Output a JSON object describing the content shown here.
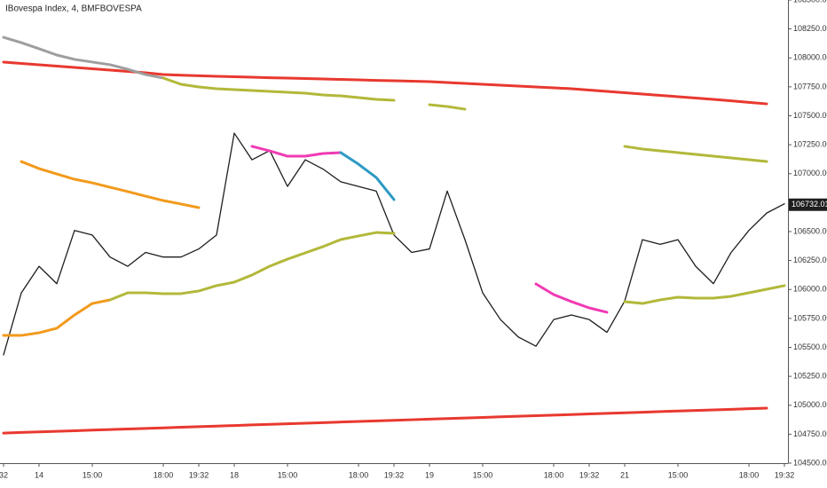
{
  "chart_data": {
    "type": "line",
    "title": "IBovespa Index, 4, BMFBOVESPA",
    "categories": [
      "32",
      null,
      "14",
      null,
      null,
      "15:00",
      null,
      null,
      null,
      "18:00",
      null,
      "19:32",
      null,
      "18",
      null,
      null,
      "15:00",
      null,
      null,
      null,
      "18:00",
      null,
      "19:32",
      null,
      "19",
      null,
      null,
      "15:00",
      null,
      null,
      null,
      "18:00",
      null,
      "19:32",
      null,
      "21",
      null,
      null,
      "15:00",
      null,
      null,
      null,
      "18:00",
      null,
      "19:32"
    ],
    "ylim": [
      104500,
      108500
    ],
    "yticks": [
      {
        "value": 104500,
        "label": "104500.00"
      },
      {
        "value": 104750,
        "label": "104750.00"
      },
      {
        "value": 105000,
        "label": "105000.00"
      },
      {
        "value": 105250,
        "label": "105250.00"
      },
      {
        "value": 105500,
        "label": "105500.00"
      },
      {
        "value": 105750,
        "label": "105750.00"
      },
      {
        "value": 106000,
        "label": "106000.00"
      },
      {
        "value": 106250,
        "label": "106250.00"
      },
      {
        "value": 106500,
        "label": "106500.00"
      },
      {
        "value": 106750,
        "label": "106750.00"
      },
      {
        "value": 107000,
        "label": "107000.00"
      },
      {
        "value": 107250,
        "label": "107250.00"
      },
      {
        "value": 107500,
        "label": "107500.00"
      },
      {
        "value": 107750,
        "label": "107750.00"
      },
      {
        "value": 108000,
        "label": "108000.00"
      },
      {
        "value": 108250,
        "label": "108250.00"
      },
      {
        "value": 108500,
        "label": "108500.00"
      }
    ],
    "last_price": 106732.01,
    "grid": false,
    "series": [
      {
        "color": "#1e1e1e",
        "values": [
          105435,
          105970,
          106200,
          106050,
          106510,
          106470,
          106280,
          106200,
          106320,
          106280,
          106280,
          106350,
          106470,
          107350,
          107120,
          107200,
          106890,
          107120,
          107040,
          106930,
          106890,
          106850,
          106470,
          106320,
          106350,
          106850,
          106430,
          105970,
          105740,
          105590,
          105510,
          105740,
          105780,
          105740,
          105630,
          105900,
          106430,
          106390,
          106430,
          106200,
          106050,
          106320,
          106510,
          106660,
          106740
        ]
      },
      {
        "color": "#e8392f",
        "values": [
          107964,
          107952,
          107941,
          107929,
          107918,
          107906,
          107895,
          107883,
          107872,
          107856,
          107851,
          107846,
          107841,
          107837,
          107833,
          107829,
          107826,
          107822,
          107818,
          107814,
          107810,
          107806,
          107803,
          107799,
          107795,
          107787,
          107780,
          107772,
          107764,
          107757,
          107749,
          107741,
          107734,
          107722,
          107711,
          107699,
          107688,
          107676,
          107665,
          107653,
          107642,
          107629,
          107616,
          107603,
          null
        ]
      },
      {
        "color": "#e8392f",
        "values": [
          104760,
          104765,
          104770,
          104775,
          104780,
          104785,
          104790,
          104795,
          104800,
          104805,
          104810,
          104815,
          104820,
          104825,
          104830,
          104835,
          104840,
          104845,
          104850,
          104855,
          104860,
          104865,
          104870,
          104875,
          104880,
          104885,
          104890,
          104895,
          104900,
          104905,
          104910,
          104915,
          104920,
          104925,
          104930,
          104935,
          104940,
          104945,
          104950,
          104955,
          104960,
          104965,
          104970,
          104975,
          null
        ]
      },
      {
        "color": "#9e9e9e",
        "values": [
          108178,
          108132,
          108079,
          108025,
          107987,
          107964,
          107941,
          107902,
          107856,
          107826,
          null,
          null,
          null,
          null,
          null,
          null,
          null,
          null,
          null,
          null,
          null,
          null,
          null,
          null,
          null,
          null,
          null,
          null,
          null,
          null,
          null,
          null,
          null,
          null,
          null,
          null,
          null,
          null,
          null,
          null,
          null,
          null,
          null,
          null,
          null
        ]
      },
      {
        "color": "#b3b83a",
        "values": [
          null,
          null,
          null,
          null,
          null,
          null,
          null,
          null,
          null,
          107826,
          107772,
          107749,
          107734,
          107726,
          107718,
          107711,
          107703,
          107695,
          107680,
          107672,
          107657,
          107642,
          107634,
          null,
          107596,
          107580,
          107557,
          null,
          null,
          null,
          null,
          null,
          null,
          null,
          null,
          107236,
          107213,
          107197,
          107182,
          107167,
          107151,
          107136,
          107121,
          107105,
          null
        ]
      },
      {
        "color": "#f29a1c",
        "values": [
          null,
          107105,
          107044,
          106998,
          106952,
          106921,
          106883,
          106845,
          106806,
          106768,
          106738,
          106707,
          null,
          null,
          null,
          null,
          null,
          null,
          null,
          null,
          null,
          null,
          null,
          null,
          null,
          null,
          null,
          null,
          null,
          null,
          null,
          null,
          null,
          null,
          null,
          null,
          null,
          null,
          null,
          null,
          null,
          null,
          null,
          null,
          null
        ]
      },
      {
        "color": "#f29a1c",
        "values": [
          105603,
          105603,
          105626,
          105665,
          105780,
          105879,
          105910,
          null,
          null,
          null,
          null,
          null,
          null,
          null,
          null,
          null,
          null,
          null,
          null,
          null,
          null,
          null,
          null,
          null,
          null,
          null,
          null,
          null,
          null,
          null,
          null,
          null,
          null,
          null,
          null,
          null,
          null,
          null,
          null,
          null,
          null,
          null,
          null,
          null,
          null
        ]
      },
      {
        "color": "#b3b83a",
        "values": [
          null,
          null,
          null,
          null,
          null,
          null,
          105910,
          105971,
          105971,
          105964,
          105964,
          105987,
          106033,
          106063,
          106125,
          106201,
          106262,
          106316,
          106370,
          106431,
          106462,
          106492,
          106485,
          null,
          null,
          null,
          null,
          null,
          null,
          null,
          null,
          null,
          null,
          null,
          null,
          105895,
          105879,
          105910,
          105933,
          105925,
          105925,
          105941,
          105971,
          106002,
          106033
        ]
      },
      {
        "color": "#f03bb4",
        "values": [
          null,
          null,
          null,
          null,
          null,
          null,
          null,
          null,
          null,
          null,
          null,
          null,
          null,
          null,
          107236,
          107197,
          107151,
          107151,
          107174,
          107182,
          null,
          null,
          null,
          null,
          null,
          null,
          null,
          null,
          null,
          null,
          106048,
          105956,
          105895,
          105841,
          105803,
          null,
          null,
          null,
          null,
          null,
          null,
          null,
          null,
          null,
          null
        ]
      },
      {
        "color": "#2c9ac4",
        "values": [
          null,
          null,
          null,
          null,
          null,
          null,
          null,
          null,
          null,
          null,
          null,
          null,
          null,
          null,
          null,
          null,
          null,
          null,
          null,
          107182,
          107082,
          106967,
          106776,
          null,
          null,
          null,
          null,
          null,
          null,
          null,
          null,
          null,
          null,
          null,
          null,
          null,
          null,
          null,
          null,
          null,
          null,
          null,
          null,
          null,
          null
        ]
      }
    ]
  }
}
